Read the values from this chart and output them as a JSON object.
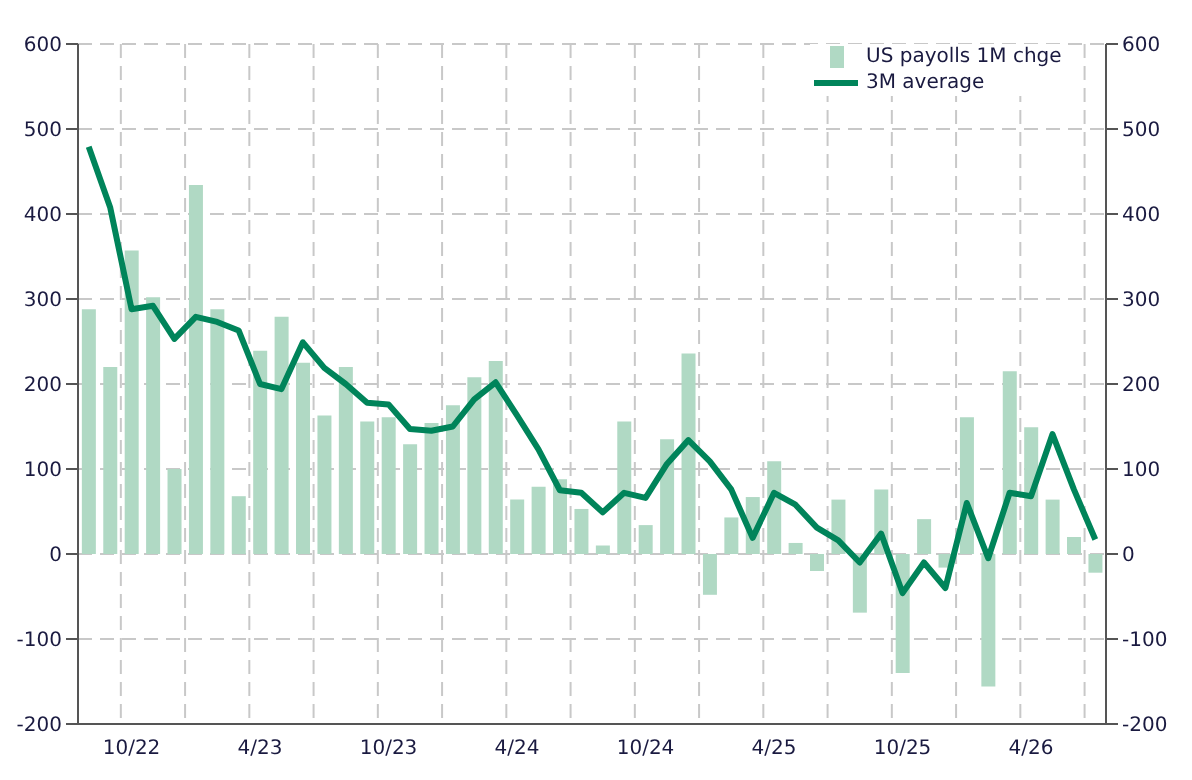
{
  "chart_data": {
    "type": "bar",
    "categories": [
      null,
      null,
      "10/22",
      null,
      null,
      null,
      null,
      null,
      "4/23",
      null,
      null,
      null,
      null,
      null,
      "10/23",
      null,
      null,
      null,
      null,
      null,
      "4/24",
      null,
      null,
      null,
      null,
      null,
      "10/24",
      null,
      null,
      null,
      null,
      null,
      "4/25",
      null,
      null,
      null,
      null,
      null,
      "10/25",
      null,
      null,
      null,
      null,
      null,
      "4/26",
      null,
      null,
      null
    ],
    "series": [
      {
        "name": "US payolls 1M chge",
        "color": "#b0d9c4",
        "values": [
          288,
          220,
          357,
          302,
          100,
          434,
          288,
          68,
          239,
          279,
          225,
          163,
          220,
          156,
          161,
          129,
          154,
          175,
          208,
          227,
          64,
          79,
          88,
          53,
          10,
          156,
          34,
          135,
          236,
          -48,
          43,
          67,
          109,
          13,
          -20,
          64,
          -69,
          76,
          -140,
          41,
          -16,
          161,
          -156,
          215,
          149,
          64,
          20,
          -22
        ]
      },
      {
        "name": "3M average",
        "type": "line",
        "color": "#00845a",
        "values": [
          479,
          408,
          288,
          292,
          253,
          279,
          273,
          263,
          200,
          194,
          249,
          219,
          200,
          178,
          176,
          147,
          145,
          150,
          182,
          202,
          163,
          123,
          75,
          72,
          49,
          72,
          66,
          106,
          134,
          109,
          76,
          19,
          72,
          58,
          31,
          16,
          -10,
          24,
          -46,
          -10,
          -40,
          60,
          -5,
          72,
          68,
          141,
          76,
          17
        ]
      }
    ],
    "ylim": [
      -200,
      600
    ],
    "yticks": [
      -200,
      -100,
      0,
      100,
      200,
      300,
      400,
      500,
      600
    ],
    "y2lim": [
      -200,
      600
    ],
    "y2ticks": [
      -200,
      -100,
      0,
      100,
      200,
      300,
      400,
      500,
      600
    ],
    "grid": true,
    "legend": "top right"
  }
}
